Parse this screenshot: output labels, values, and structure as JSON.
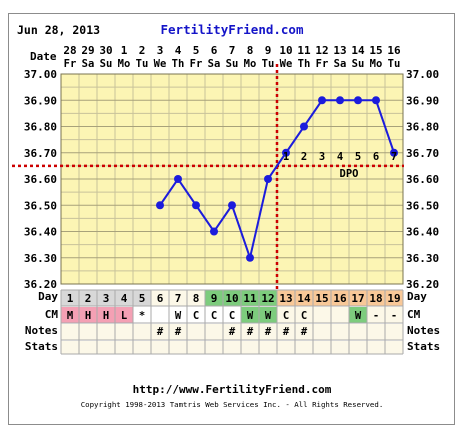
{
  "header": {
    "date": "Jun 28, 2013",
    "site": "FertilityFriend.com"
  },
  "row_labels": {
    "date": "Date",
    "day": "Day",
    "cm": "CM",
    "notes": "Notes",
    "stats": "Stats"
  },
  "dates": [
    {
      "num": "28",
      "dow": "Fr"
    },
    {
      "num": "29",
      "dow": "Sa"
    },
    {
      "num": "30",
      "dow": "Su"
    },
    {
      "num": "1",
      "dow": "Mo"
    },
    {
      "num": "2",
      "dow": "Tu"
    },
    {
      "num": "3",
      "dow": "We"
    },
    {
      "num": "4",
      "dow": "Th"
    },
    {
      "num": "5",
      "dow": "Fr"
    },
    {
      "num": "6",
      "dow": "Sa"
    },
    {
      "num": "7",
      "dow": "Su"
    },
    {
      "num": "8",
      "dow": "Mo"
    },
    {
      "num": "9",
      "dow": "Tu"
    },
    {
      "num": "10",
      "dow": "We"
    },
    {
      "num": "11",
      "dow": "Th"
    },
    {
      "num": "12",
      "dow": "Fr"
    },
    {
      "num": "13",
      "dow": "Sa"
    },
    {
      "num": "14",
      "dow": "Su"
    },
    {
      "num": "15",
      "dow": "Mo"
    },
    {
      "num": "16",
      "dow": "Tu"
    }
  ],
  "chart_data": {
    "type": "line",
    "x": [
      1,
      2,
      3,
      4,
      5,
      6,
      7,
      8,
      9,
      10,
      11,
      12,
      13,
      14,
      15,
      16,
      17,
      18,
      19
    ],
    "series": [
      {
        "values": [
          null,
          null,
          null,
          null,
          null,
          36.5,
          36.6,
          36.5,
          36.4,
          36.5,
          36.3,
          36.6,
          36.7,
          36.8,
          36.9,
          36.9,
          36.9,
          36.9,
          36.7
        ]
      }
    ],
    "ylim": [
      36.2,
      37.0
    ],
    "yticks": [
      "37.00",
      "36.90",
      "36.80",
      "36.70",
      "36.60",
      "36.50",
      "36.40",
      "36.30",
      "36.20"
    ],
    "coverline": 36.65,
    "ovulation_day": 12,
    "dpo": [
      "1",
      "2",
      "3",
      "4",
      "5",
      "6",
      "7"
    ],
    "dpo_label": "DPO",
    "colors": {
      "plot_bg": "#fcf5b4",
      "grid": "#c8c29a",
      "line": "#1c1cdc",
      "marker": "#1c1cdc",
      "coverline": "#cc0000",
      "ovulation_line": "#cc0000",
      "menses": "#f4a0b4",
      "fertile": "#7dcc7d",
      "luteal": "#f8c898",
      "grey": "#d8d8d8",
      "cream": "#fcf8e8"
    }
  },
  "days": [
    "1",
    "2",
    "3",
    "4",
    "5",
    "6",
    "7",
    "8",
    "9",
    "10",
    "11",
    "12",
    "13",
    "14",
    "15",
    "16",
    "17",
    "18",
    "19"
  ],
  "cm": [
    "M",
    "H",
    "H",
    "L",
    "*",
    "",
    "W",
    "C",
    "C",
    "C",
    "W",
    "W",
    "C",
    "C",
    "",
    "",
    "W",
    "-",
    "-"
  ],
  "notes": [
    "",
    "",
    "",
    "",
    "",
    "#",
    "#",
    "",
    "",
    "#",
    "#",
    "#",
    "#",
    "#",
    "",
    "",
    "",
    "",
    ""
  ],
  "footer": {
    "url": "http://www.FertilityFriend.com",
    "copyright": "Copyright 1998-2013 Tamtris Web Services Inc. - All Rights Reserved."
  }
}
